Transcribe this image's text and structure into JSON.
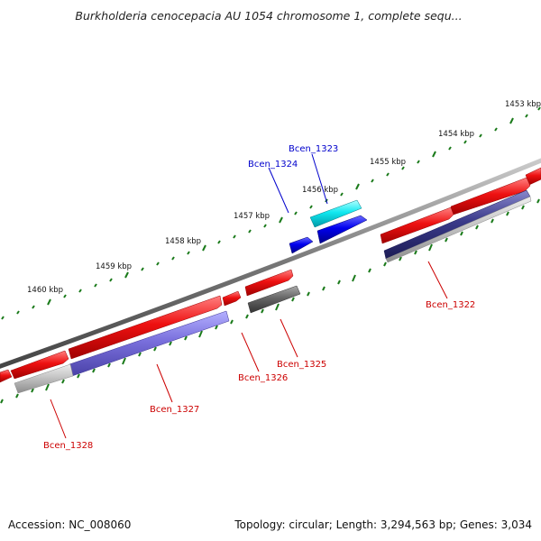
{
  "header": {
    "title": "Burkholderia cenocepacia AU 1054 chromosome 1, complete sequ..."
  },
  "footer": {
    "accession": "Accession: NC_008060",
    "topology": "Topology: circular; Length: 3,294,563 bp; Genes: 3,034"
  },
  "colors": {
    "backbone": "#888888",
    "tick": "#1a7a1a",
    "forward_gene": "#ee1111",
    "label_forward": "#cc0000",
    "label_reverse": "#0000cc"
  },
  "scale": {
    "ticks": [
      {
        "label": "1453 kbp"
      },
      {
        "label": "1454 kbp"
      },
      {
        "label": "1455 kbp"
      },
      {
        "label": "1456 kbp"
      },
      {
        "label": "1457 kbp"
      },
      {
        "label": "1458 kbp"
      },
      {
        "label": "1459 kbp"
      },
      {
        "label": "1460 kbp"
      }
    ]
  },
  "genes": [
    {
      "name": "Bcen_1322"
    },
    {
      "name": "Bcen_1323"
    },
    {
      "name": "Bcen_1324"
    },
    {
      "name": "Bcen_1325"
    },
    {
      "name": "Bcen_1326"
    },
    {
      "name": "Bcen_1327"
    },
    {
      "name": "Bcen_1328"
    }
  ]
}
